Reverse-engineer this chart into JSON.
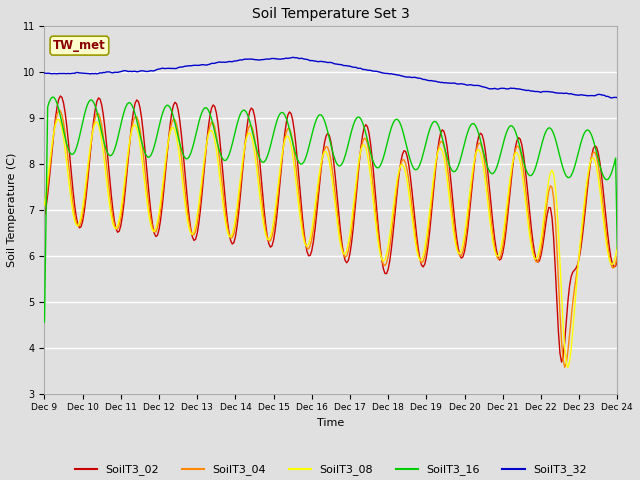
{
  "title": "Soil Temperature Set 3",
  "xlabel": "Time",
  "ylabel": "Soil Temperature (C)",
  "ylim": [
    3.0,
    11.0
  ],
  "yticks": [
    3.0,
    4.0,
    5.0,
    6.0,
    7.0,
    8.0,
    9.0,
    10.0,
    11.0
  ],
  "xtick_labels": [
    "Dec 9",
    "Dec 10",
    "Dec 11",
    "Dec 12",
    "Dec 13",
    "Dec 14",
    "Dec 15",
    "Dec 16",
    "Dec 17",
    "Dec 18",
    "Dec 19",
    "Dec 20",
    "Dec 21",
    "Dec 22",
    "Dec 23",
    "Dec 24"
  ],
  "series_colors": {
    "SoilT3_02": "#cc0000",
    "SoilT3_04": "#ff8800",
    "SoilT3_08": "#ffff00",
    "SoilT3_16": "#00cc00",
    "SoilT3_32": "#0000cc"
  },
  "bg_color": "#e0e0e0",
  "annotation_text": "TW_met",
  "annotation_color": "#8b0000",
  "annotation_bg": "#ffffcc",
  "annotation_border": "#999900"
}
